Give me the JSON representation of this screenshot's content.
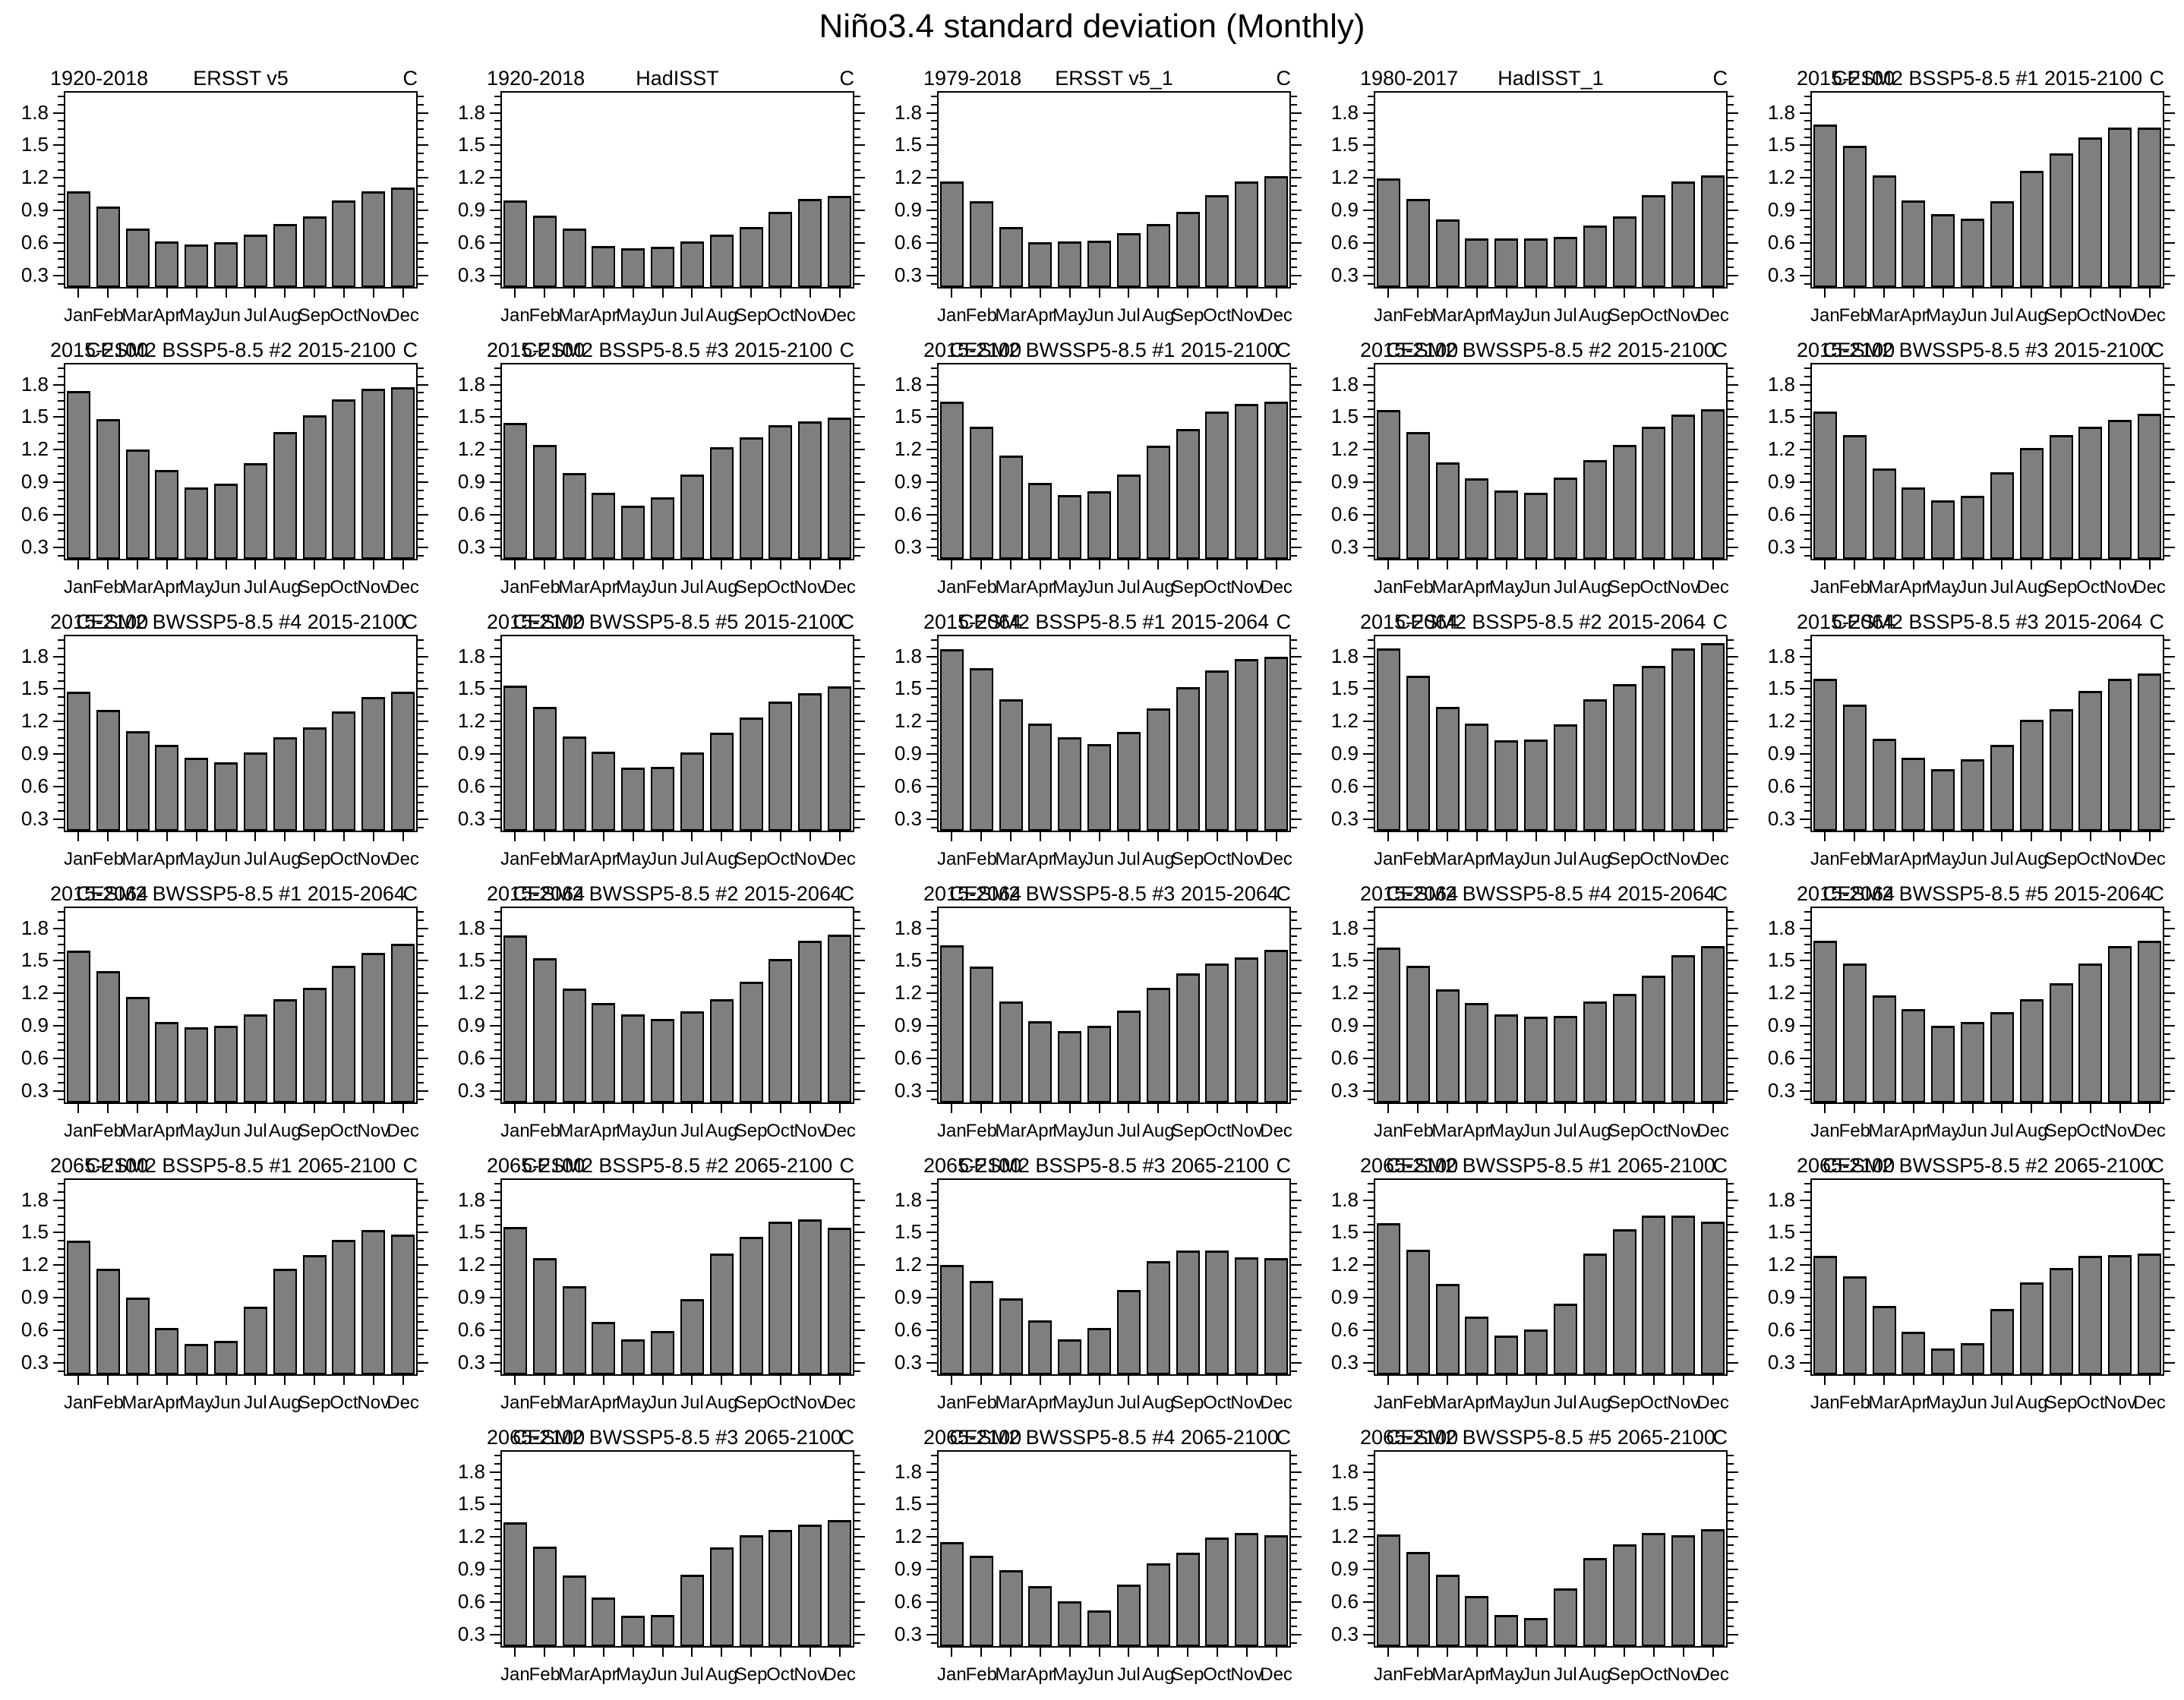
{
  "page": {
    "title": "Niño3.4 standard deviation (Monthly)"
  },
  "colors": {
    "bar_fill": "#7f7f7f",
    "axis": "#000000",
    "background": "#ffffff"
  },
  "chart_data": {
    "type": "bar",
    "title": "Niño3.4 standard deviation (Monthly)",
    "unit_label": "C",
    "categories": [
      "Jan",
      "Feb",
      "Mar",
      "Apr",
      "May",
      "Jun",
      "Jul",
      "Aug",
      "Sep",
      "Oct",
      "Nov",
      "Dec"
    ],
    "y_major_ticks": [
      "0.3",
      "0.6",
      "0.9",
      "1.2",
      "1.5",
      "1.8"
    ],
    "ylim": [
      0.18,
      2.0
    ],
    "grid": "off",
    "panels": [
      {
        "row": 1,
        "col": 1,
        "period": "1920-2018",
        "title": "ERSST v5",
        "values": [
          1.06,
          0.92,
          0.72,
          0.6,
          0.57,
          0.59,
          0.66,
          0.76,
          0.83,
          0.98,
          1.06,
          1.1
        ]
      },
      {
        "row": 1,
        "col": 2,
        "period": "1920-2018",
        "title": "HadISST",
        "values": [
          0.98,
          0.84,
          0.72,
          0.56,
          0.54,
          0.55,
          0.6,
          0.66,
          0.73,
          0.87,
          0.99,
          1.02
        ]
      },
      {
        "row": 1,
        "col": 3,
        "period": "1979-2018",
        "title": "ERSST v5_1",
        "values": [
          1.15,
          0.97,
          0.73,
          0.59,
          0.6,
          0.61,
          0.68,
          0.76,
          0.87,
          1.03,
          1.15,
          1.2
        ]
      },
      {
        "row": 1,
        "col": 4,
        "period": "1980-2017",
        "title": "HadISST_1",
        "values": [
          1.18,
          0.99,
          0.8,
          0.63,
          0.63,
          0.63,
          0.64,
          0.75,
          0.83,
          1.03,
          1.15,
          1.21
        ]
      },
      {
        "row": 1,
        "col": 5,
        "period": "2015-2100",
        "title": "CESM2 BSSP5-8.5 #1 2015-2100",
        "values": [
          1.68,
          1.48,
          1.21,
          0.98,
          0.85,
          0.81,
          0.97,
          1.25,
          1.41,
          1.56,
          1.65,
          1.65
        ]
      },
      {
        "row": 2,
        "col": 1,
        "period": "2015-2100",
        "title": "CESM2 BSSP5-8.5 #2 2015-2100",
        "values": [
          1.73,
          1.47,
          1.19,
          1.0,
          0.84,
          0.87,
          1.06,
          1.35,
          1.5,
          1.65,
          1.75,
          1.76
        ]
      },
      {
        "row": 2,
        "col": 2,
        "period": "2015-2100",
        "title": "CESM2 BSSP5-8.5 #3 2015-2100",
        "values": [
          1.43,
          1.23,
          0.97,
          0.79,
          0.67,
          0.75,
          0.96,
          1.21,
          1.3,
          1.41,
          1.45,
          1.48
        ]
      },
      {
        "row": 2,
        "col": 3,
        "period": "2015-2100",
        "title": "CESM2 BWSSP5-8.5 #1 2015-2100",
        "values": [
          1.63,
          1.4,
          1.13,
          0.88,
          0.77,
          0.8,
          0.96,
          1.22,
          1.38,
          1.54,
          1.61,
          1.63
        ]
      },
      {
        "row": 2,
        "col": 4,
        "period": "2015-2100",
        "title": "CESM2 BWSSP5-8.5 #2 2015-2100",
        "values": [
          1.55,
          1.35,
          1.07,
          0.92,
          0.81,
          0.79,
          0.93,
          1.09,
          1.23,
          1.4,
          1.51,
          1.56
        ]
      },
      {
        "row": 2,
        "col": 5,
        "period": "2015-2100",
        "title": "CESM2 BWSSP5-8.5 #3 2015-2100",
        "values": [
          1.54,
          1.32,
          1.01,
          0.84,
          0.72,
          0.76,
          0.98,
          1.2,
          1.32,
          1.4,
          1.46,
          1.52
        ]
      },
      {
        "row": 3,
        "col": 1,
        "period": "2015-2100",
        "title": "CESM2 BWSSP5-8.5 #4 2015-2100",
        "values": [
          1.46,
          1.29,
          1.1,
          0.97,
          0.85,
          0.81,
          0.9,
          1.04,
          1.13,
          1.28,
          1.41,
          1.46
        ]
      },
      {
        "row": 3,
        "col": 2,
        "period": "2015-2100",
        "title": "CESM2 BWSSP5-8.5 #5 2015-2100",
        "values": [
          1.52,
          1.32,
          1.05,
          0.91,
          0.76,
          0.77,
          0.9,
          1.08,
          1.22,
          1.37,
          1.45,
          1.51
        ]
      },
      {
        "row": 3,
        "col": 3,
        "period": "2015-2064",
        "title": "CESM2 BSSP5-8.5 #1 2015-2064",
        "values": [
          1.85,
          1.68,
          1.39,
          1.17,
          1.04,
          0.98,
          1.09,
          1.31,
          1.5,
          1.66,
          1.76,
          1.78
        ]
      },
      {
        "row": 3,
        "col": 4,
        "period": "2015-2064",
        "title": "CESM2 BSSP5-8.5 #2 2015-2064",
        "values": [
          1.86,
          1.61,
          1.32,
          1.17,
          1.01,
          1.02,
          1.16,
          1.39,
          1.53,
          1.7,
          1.86,
          1.91
        ]
      },
      {
        "row": 3,
        "col": 5,
        "period": "2015-2064",
        "title": "CESM2 BSSP5-8.5 #3 2015-2064",
        "values": [
          1.58,
          1.34,
          1.03,
          0.85,
          0.75,
          0.84,
          0.97,
          1.2,
          1.3,
          1.47,
          1.58,
          1.63
        ]
      },
      {
        "row": 4,
        "col": 1,
        "period": "2015-2064",
        "title": "CESM2 BWSSP5-8.5 #1 2015-2064",
        "values": [
          1.58,
          1.39,
          1.15,
          0.92,
          0.87,
          0.89,
          0.99,
          1.13,
          1.24,
          1.44,
          1.56,
          1.64
        ]
      },
      {
        "row": 4,
        "col": 2,
        "period": "2015-2064",
        "title": "CESM2 BWSSP5-8.5 #2 2015-2064",
        "values": [
          1.72,
          1.51,
          1.23,
          1.1,
          0.99,
          0.95,
          1.02,
          1.13,
          1.29,
          1.5,
          1.67,
          1.73
        ]
      },
      {
        "row": 4,
        "col": 3,
        "period": "2015-2064",
        "title": "CESM2 BWSSP5-8.5 #3 2015-2064",
        "values": [
          1.63,
          1.43,
          1.11,
          0.93,
          0.84,
          0.89,
          1.03,
          1.24,
          1.37,
          1.46,
          1.52,
          1.59
        ]
      },
      {
        "row": 4,
        "col": 4,
        "period": "2015-2064",
        "title": "CESM2 BWSSP5-8.5 #4 2015-2064",
        "values": [
          1.61,
          1.44,
          1.22,
          1.1,
          0.99,
          0.97,
          0.98,
          1.11,
          1.18,
          1.35,
          1.54,
          1.62
        ]
      },
      {
        "row": 4,
        "col": 5,
        "period": "2015-2064",
        "title": "CESM2 BWSSP5-8.5 #5 2015-2064",
        "values": [
          1.67,
          1.46,
          1.17,
          1.04,
          0.89,
          0.92,
          1.01,
          1.13,
          1.28,
          1.46,
          1.62,
          1.67
        ]
      },
      {
        "row": 5,
        "col": 1,
        "period": "2065-2100",
        "title": "CESM2 BSSP5-8.5 #1 2065-2100",
        "values": [
          1.41,
          1.15,
          0.89,
          0.61,
          0.46,
          0.49,
          0.8,
          1.15,
          1.28,
          1.42,
          1.51,
          1.47
        ]
      },
      {
        "row": 5,
        "col": 2,
        "period": "2065-2100",
        "title": "CESM2 BSSP5-8.5 #2 2065-2100",
        "values": [
          1.54,
          1.25,
          0.99,
          0.66,
          0.5,
          0.58,
          0.87,
          1.29,
          1.45,
          1.59,
          1.61,
          1.53
        ]
      },
      {
        "row": 5,
        "col": 3,
        "period": "2065-2100",
        "title": "CESM2 BSSP5-8.5 #3 2065-2100",
        "values": [
          1.19,
          1.04,
          0.88,
          0.68,
          0.5,
          0.61,
          0.96,
          1.22,
          1.32,
          1.32,
          1.26,
          1.25
        ]
      },
      {
        "row": 5,
        "col": 4,
        "period": "2065-2100",
        "title": "CESM2 BWSSP5-8.5 #1 2065-2100",
        "values": [
          1.57,
          1.33,
          1.01,
          0.71,
          0.54,
          0.59,
          0.83,
          1.29,
          1.52,
          1.64,
          1.64,
          1.59
        ]
      },
      {
        "row": 5,
        "col": 5,
        "period": "2065-2100",
        "title": "CESM2 BWSSP5-8.5 #2 2065-2100",
        "values": [
          1.27,
          1.08,
          0.81,
          0.57,
          0.42,
          0.47,
          0.78,
          1.03,
          1.16,
          1.27,
          1.28,
          1.29
        ]
      },
      {
        "row": 6,
        "col": 2,
        "period": "2065-2100",
        "title": "CESM2 BWSSP5-8.5 #3 2065-2100",
        "values": [
          1.32,
          1.1,
          0.83,
          0.63,
          0.46,
          0.47,
          0.84,
          1.09,
          1.2,
          1.25,
          1.3,
          1.34
        ]
      },
      {
        "row": 6,
        "col": 3,
        "period": "2065-2100",
        "title": "CESM2 BWSSP5-8.5 #4 2065-2100",
        "values": [
          1.14,
          1.01,
          0.88,
          0.73,
          0.59,
          0.51,
          0.75,
          0.94,
          1.04,
          1.18,
          1.22,
          1.2
        ]
      },
      {
        "row": 6,
        "col": 4,
        "period": "2065-2100",
        "title": "CESM2 BWSSP5-8.5 #5 2065-2100",
        "values": [
          1.21,
          1.05,
          0.84,
          0.64,
          0.47,
          0.44,
          0.71,
          0.99,
          1.12,
          1.22,
          1.2,
          1.26
        ]
      }
    ]
  }
}
